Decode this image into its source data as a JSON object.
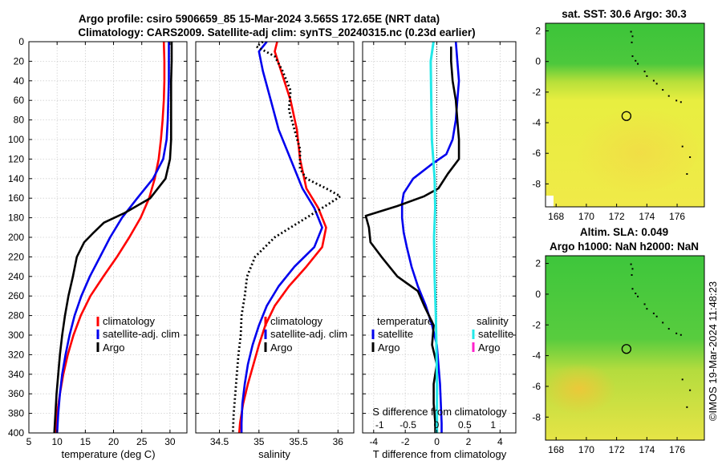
{
  "title": {
    "line1": "Argo profile: csiro 5906659_85 15-Mar-2024 3.565S 172.65E (NRT data)",
    "line2": "Climatology: CARS2009. Satellite-adj clim: synTS_20240315.nc (0.23d earlier)"
  },
  "colors": {
    "climatology": "#ff0000",
    "satellite": "#0000ee",
    "argo": "#000000",
    "sal_satellite": "#22e8e8",
    "sal_argo": "#ff22cc"
  },
  "chart_data": [
    {
      "type": "line",
      "name": "temperature-profile",
      "xlabel": "temperature (deg C)",
      "ylabel": "depth",
      "xlim": [
        5,
        33
      ],
      "ylim": [
        0,
        400
      ],
      "y_inverted": true,
      "xticks": [
        5,
        10,
        15,
        20,
        25,
        30
      ],
      "yticks": [
        0,
        20,
        40,
        60,
        80,
        100,
        120,
        140,
        160,
        180,
        200,
        220,
        240,
        260,
        280,
        300,
        320,
        340,
        360,
        380,
        400
      ],
      "legend": [
        "climatology",
        "satellite-adj. clim",
        "Argo"
      ],
      "series": [
        {
          "name": "climatology",
          "color": "#ff0000",
          "points": [
            [
              28.9,
              0
            ],
            [
              29.0,
              20
            ],
            [
              29.0,
              40
            ],
            [
              28.9,
              60
            ],
            [
              28.7,
              80
            ],
            [
              28.4,
              100
            ],
            [
              28.0,
              120
            ],
            [
              27.3,
              140
            ],
            [
              26.3,
              160
            ],
            [
              24.8,
              180
            ],
            [
              22.8,
              200
            ],
            [
              20.6,
              220
            ],
            [
              18.2,
              240
            ],
            [
              15.9,
              260
            ],
            [
              14.2,
              280
            ],
            [
              12.9,
              300
            ],
            [
              11.9,
              320
            ],
            [
              11.1,
              340
            ],
            [
              10.5,
              360
            ],
            [
              10.0,
              380
            ],
            [
              9.7,
              400
            ]
          ]
        },
        {
          "name": "satellite-adj. clim",
          "color": "#0000ee",
          "points": [
            [
              29.8,
              0
            ],
            [
              29.8,
              20
            ],
            [
              29.8,
              40
            ],
            [
              29.7,
              60
            ],
            [
              29.6,
              80
            ],
            [
              29.4,
              100
            ],
            [
              28.8,
              120
            ],
            [
              27.0,
              140
            ],
            [
              24.2,
              160
            ],
            [
              21.5,
              180
            ],
            [
              19.4,
              200
            ],
            [
              17.6,
              220
            ],
            [
              15.8,
              240
            ],
            [
              14.3,
              260
            ],
            [
              13.1,
              280
            ],
            [
              12.2,
              300
            ],
            [
              11.5,
              320
            ],
            [
              10.9,
              340
            ],
            [
              10.5,
              360
            ],
            [
              10.2,
              380
            ],
            [
              10.0,
              400
            ]
          ]
        },
        {
          "name": "Argo",
          "color": "#000000",
          "points": [
            [
              30.3,
              0
            ],
            [
              30.3,
              20
            ],
            [
              30.2,
              40
            ],
            [
              30.2,
              60
            ],
            [
              30.2,
              80
            ],
            [
              30.2,
              100
            ],
            [
              30.0,
              120
            ],
            [
              29.2,
              140
            ],
            [
              26.5,
              160
            ],
            [
              22.0,
              175
            ],
            [
              18.3,
              185
            ],
            [
              16.5,
              195
            ],
            [
              14.8,
              205
            ],
            [
              13.5,
              220
            ],
            [
              12.8,
              240
            ],
            [
              12.0,
              260
            ],
            [
              11.4,
              280
            ],
            [
              10.9,
              300
            ],
            [
              10.5,
              320
            ],
            [
              10.2,
              340
            ],
            [
              9.9,
              360
            ],
            [
              9.7,
              380
            ],
            [
              9.5,
              400
            ]
          ]
        }
      ]
    },
    {
      "type": "line",
      "name": "salinity-profile",
      "xlabel": "salinity",
      "xlim": [
        34.2,
        36.2
      ],
      "ylim": [
        0,
        400
      ],
      "y_inverted": true,
      "xticks": [
        34.5,
        35,
        35.5,
        36
      ],
      "legend": [
        "climatology",
        "satellite-adj. clim",
        "Argo"
      ],
      "series": [
        {
          "name": "climatology",
          "color": "#ff0000",
          "points": [
            [
              35.23,
              0
            ],
            [
              35.2,
              10
            ],
            [
              35.28,
              30
            ],
            [
              35.4,
              60
            ],
            [
              35.48,
              90
            ],
            [
              35.52,
              120
            ],
            [
              35.6,
              150
            ],
            [
              35.75,
              170
            ],
            [
              35.85,
              190
            ],
            [
              35.8,
              210
            ],
            [
              35.6,
              230
            ],
            [
              35.38,
              250
            ],
            [
              35.2,
              270
            ],
            [
              35.08,
              290
            ],
            [
              35.0,
              310
            ],
            [
              34.93,
              330
            ],
            [
              34.86,
              350
            ],
            [
              34.8,
              370
            ],
            [
              34.76,
              390
            ],
            [
              34.75,
              400
            ]
          ]
        },
        {
          "name": "satellite-adj. clim",
          "color": "#0000ee",
          "points": [
            [
              35.1,
              0
            ],
            [
              35.0,
              10
            ],
            [
              35.05,
              30
            ],
            [
              35.15,
              60
            ],
            [
              35.25,
              90
            ],
            [
              35.4,
              120
            ],
            [
              35.55,
              150
            ],
            [
              35.7,
              170
            ],
            [
              35.8,
              190
            ],
            [
              35.7,
              210
            ],
            [
              35.45,
              230
            ],
            [
              35.25,
              250
            ],
            [
              35.1,
              270
            ],
            [
              35.0,
              290
            ],
            [
              34.92,
              310
            ],
            [
              34.86,
              330
            ],
            [
              34.82,
              350
            ],
            [
              34.79,
              370
            ],
            [
              34.78,
              390
            ],
            [
              34.78,
              400
            ]
          ]
        },
        {
          "name": "Argo",
          "color": "#000000",
          "points": [
            [
              35.05,
              0
            ],
            [
              34.97,
              5
            ],
            [
              35.2,
              15
            ],
            [
              35.3,
              30
            ],
            [
              35.4,
              50
            ],
            [
              35.38,
              70
            ],
            [
              35.45,
              90
            ],
            [
              35.52,
              110
            ],
            [
              35.52,
              130
            ],
            [
              35.6,
              140
            ],
            [
              35.85,
              150
            ],
            [
              36.03,
              158
            ],
            [
              35.9,
              165
            ],
            [
              35.6,
              180
            ],
            [
              35.2,
              200
            ],
            [
              34.95,
              220
            ],
            [
              34.85,
              240
            ],
            [
              34.82,
              260
            ],
            [
              34.78,
              280
            ],
            [
              34.77,
              300
            ],
            [
              34.74,
              320
            ],
            [
              34.72,
              340
            ],
            [
              34.7,
              360
            ],
            [
              34.68,
              380
            ],
            [
              34.67,
              400
            ]
          ]
        }
      ]
    },
    {
      "type": "line",
      "name": "difference-profile",
      "xlabel": "T difference from climatology",
      "xlabel_top": "S difference from climatology",
      "xlim": [
        -4.7,
        5.0
      ],
      "top_xlim": [
        -1.3,
        1.4
      ],
      "ylim": [
        0,
        400
      ],
      "y_inverted": true,
      "xticks": [
        -4,
        -2,
        0,
        2,
        4
      ],
      "top_xticks": [
        -1,
        -0.5,
        0,
        0.5,
        1
      ],
      "legend_left_title": "temperature",
      "legend_right_title": "salinity",
      "legend": [
        "satellite",
        "Argo",
        "satellite",
        "Argo"
      ],
      "series": [
        {
          "name": "temperature satellite",
          "color": "#0000ee",
          "points": [
            [
              1.2,
              0
            ],
            [
              1.3,
              20
            ],
            [
              1.4,
              40
            ],
            [
              1.3,
              60
            ],
            [
              1.2,
              80
            ],
            [
              1.0,
              100
            ],
            [
              0.6,
              115
            ],
            [
              -0.3,
              125
            ],
            [
              -1.5,
              140
            ],
            [
              -2.1,
              155
            ],
            [
              -2.2,
              165
            ],
            [
              -2.2,
              180
            ],
            [
              -2.1,
              195
            ],
            [
              -1.9,
              210
            ],
            [
              -1.6,
              230
            ],
            [
              -1.2,
              250
            ],
            [
              -0.7,
              270
            ],
            [
              -0.3,
              290
            ],
            [
              0.0,
              310
            ],
            [
              0.1,
              330
            ],
            [
              0.2,
              350
            ],
            [
              0.25,
              370
            ],
            [
              0.3,
              390
            ],
            [
              0.3,
              400
            ]
          ]
        },
        {
          "name": "temperature Argo",
          "color": "#000000",
          "points": [
            [
              0.9,
              5
            ],
            [
              0.9,
              20
            ],
            [
              1.0,
              40
            ],
            [
              1.2,
              60
            ],
            [
              1.3,
              80
            ],
            [
              1.4,
              100
            ],
            [
              1.4,
              120
            ],
            [
              0.7,
              135
            ],
            [
              0.1,
              150
            ],
            [
              -0.8,
              158
            ],
            [
              -2.5,
              168
            ],
            [
              -4.5,
              178
            ],
            [
              -4.3,
              190
            ],
            [
              -4.2,
              205
            ],
            [
              -3.5,
              220
            ],
            [
              -2.5,
              240
            ],
            [
              -1.2,
              255
            ],
            [
              -0.8,
              270
            ],
            [
              -0.2,
              290
            ],
            [
              -0.3,
              310
            ],
            [
              0.0,
              330
            ],
            [
              -0.2,
              350
            ],
            [
              -0.2,
              370
            ],
            [
              -0.1,
              390
            ],
            [
              -0.1,
              400
            ]
          ]
        },
        {
          "name": "salinity satellite",
          "color": "#22e8e8",
          "points": [
            [
              -0.05,
              0
            ],
            [
              -0.1,
              20
            ],
            [
              -0.09,
              60
            ],
            [
              -0.08,
              100
            ],
            [
              -0.03,
              140
            ],
            [
              -0.02,
              170
            ],
            [
              -0.04,
              200
            ],
            [
              -0.03,
              240
            ],
            [
              -0.01,
              280
            ],
            [
              0.0,
              310
            ],
            [
              0.01,
              350
            ],
            [
              0.01,
              400
            ]
          ]
        }
      ]
    },
    {
      "type": "heatmap",
      "name": "sst-map",
      "title": "sat. SST: 30.6 Argo: 30.3",
      "xticks": [
        168,
        170,
        172,
        174,
        176
      ],
      "yticks": [
        2,
        0,
        -2,
        -4,
        -6,
        -8
      ],
      "xlim": [
        167.3,
        177.8
      ],
      "ylim": [
        -9.5,
        2.5
      ],
      "marker": [
        172.65,
        -3.565
      ]
    },
    {
      "type": "heatmap",
      "name": "sla-map",
      "title": "Altim. SLA: 0.049",
      "subtitle": "Argo h1000: NaN h2000: NaN",
      "xticks": [
        168,
        170,
        172,
        174,
        176
      ],
      "yticks": [
        2,
        0,
        -2,
        -4,
        -6,
        -8
      ],
      "xlim": [
        167.3,
        177.8
      ],
      "ylim": [
        -9.5,
        2.5
      ],
      "marker": [
        172.65,
        -3.565
      ]
    }
  ],
  "watermark": "©IMOS 19-Mar-2024 11:48:23"
}
